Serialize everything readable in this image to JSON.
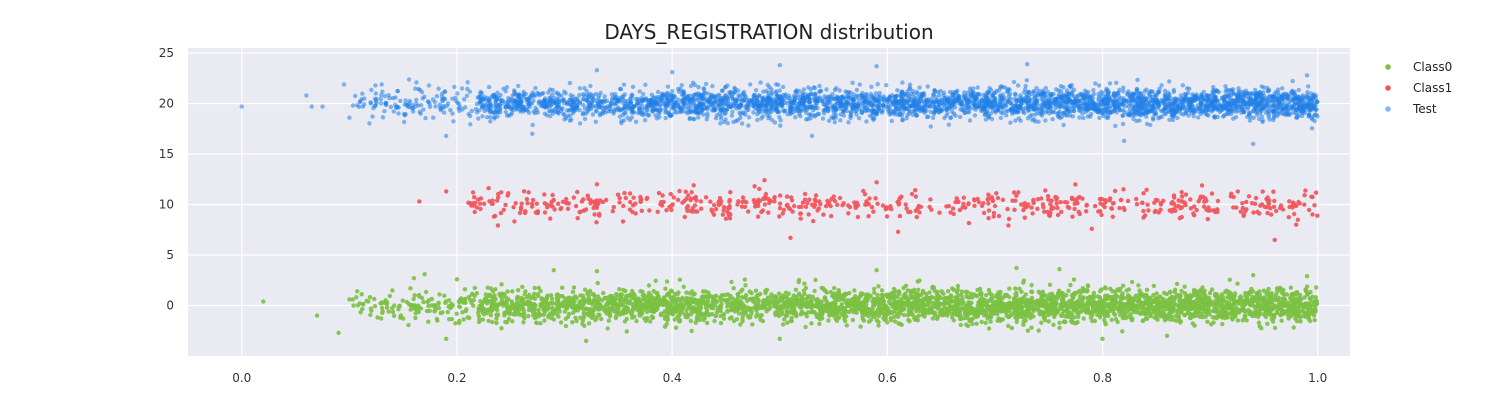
{
  "chart_data": {
    "type": "scatter",
    "title": "DAYS_REGISTRATION distribution",
    "xlabel": "",
    "ylabel": "",
    "xlim": [
      -0.05,
      1.03
    ],
    "ylim": [
      -5,
      25.5
    ],
    "xticks": [
      0.0,
      0.2,
      0.4,
      0.6,
      0.8,
      1.0
    ],
    "xtick_labels": [
      "0.0",
      "0.2",
      "0.4",
      "0.6",
      "0.8",
      "1.0"
    ],
    "yticks": [
      0,
      5,
      10,
      15,
      20,
      25
    ],
    "ytick_labels": [
      "0",
      "5",
      "10",
      "15",
      "20",
      "25"
    ],
    "grid": true,
    "legend_position": "top-right (outside plot)",
    "series": [
      {
        "name": "Class0",
        "color": "#7bc143",
        "y_center": 0,
        "y_spread": 1.1,
        "x_range": [
          0.02,
          1.0
        ],
        "points": [
          [
            0.02,
            0.4
          ],
          [
            0.07,
            -1.0
          ],
          [
            0.09,
            -2.7
          ],
          [
            0.1,
            0.6
          ],
          [
            0.12,
            -0.3
          ],
          [
            0.13,
            0.2
          ],
          [
            0.14,
            1.5
          ],
          [
            0.15,
            -1.3
          ],
          [
            0.16,
            2.7
          ],
          [
            0.17,
            3.1
          ],
          [
            0.19,
            -3.3
          ],
          [
            0.2,
            2.6
          ],
          [
            0.29,
            3.5
          ],
          [
            0.32,
            -3.5
          ],
          [
            0.33,
            3.4
          ],
          [
            0.5,
            -3.3
          ],
          [
            0.59,
            3.5
          ],
          [
            0.72,
            3.7
          ],
          [
            0.76,
            3.6
          ],
          [
            0.8,
            -3.3
          ],
          [
            0.86,
            -3.0
          ],
          [
            0.94,
            3.0
          ],
          [
            0.99,
            2.9
          ]
        ]
      },
      {
        "name": "Class1",
        "color": "#f0585e",
        "y_center": 10,
        "y_spread": 0.9,
        "x_range": [
          0.16,
          1.0
        ],
        "points": [
          [
            0.165,
            10.3
          ],
          [
            0.19,
            11.3
          ],
          [
            0.215,
            11.2
          ],
          [
            0.33,
            12.0
          ],
          [
            0.42,
            11.9
          ],
          [
            0.45,
            8.6
          ],
          [
            0.51,
            6.7
          ],
          [
            0.59,
            12.2
          ],
          [
            0.61,
            7.3
          ],
          [
            0.79,
            7.6
          ],
          [
            0.96,
            6.5
          ],
          [
            0.98,
            8.0
          ]
        ]
      },
      {
        "name": "Test",
        "color": "#1f7fe8",
        "y_center": 20,
        "y_spread": 1.0,
        "x_range": [
          0.0,
          1.0
        ],
        "points": [
          [
            0.0,
            19.7
          ],
          [
            0.06,
            20.8
          ],
          [
            0.065,
            19.7
          ],
          [
            0.075,
            19.7
          ],
          [
            0.095,
            21.9
          ],
          [
            0.1,
            18.6
          ],
          [
            0.11,
            20.2
          ],
          [
            0.12,
            20.0
          ],
          [
            0.13,
            21.9
          ],
          [
            0.19,
            16.8
          ],
          [
            0.21,
            22.1
          ],
          [
            0.27,
            17.0
          ],
          [
            0.33,
            23.3
          ],
          [
            0.4,
            23.1
          ],
          [
            0.5,
            23.8
          ],
          [
            0.53,
            16.8
          ],
          [
            0.59,
            23.7
          ],
          [
            0.73,
            23.9
          ],
          [
            0.82,
            16.3
          ],
          [
            0.94,
            16.0
          ],
          [
            0.99,
            22.8
          ]
        ]
      }
    ]
  }
}
